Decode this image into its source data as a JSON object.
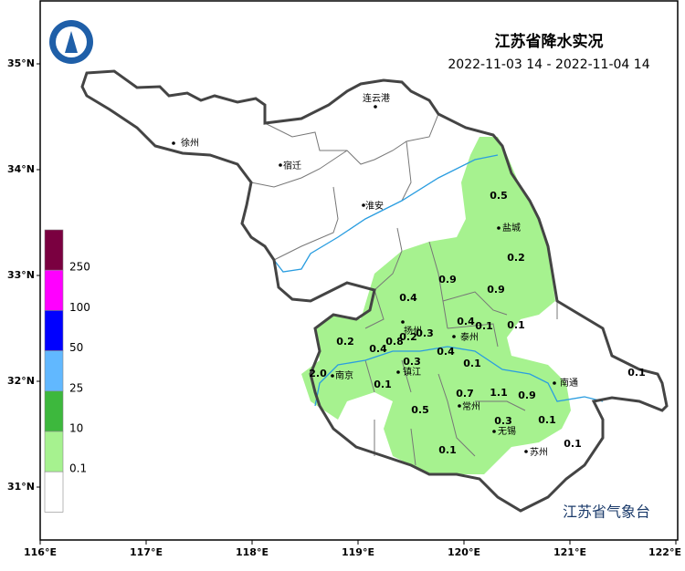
{
  "header": {
    "title": "江苏省降水实况",
    "subtitle": "2022-11-03 14 - 2022-11-04 14"
  },
  "axes": {
    "lat_ticks": [
      {
        "value": 35,
        "label": "35°N"
      },
      {
        "value": 34,
        "label": "34°N"
      },
      {
        "value": 33,
        "label": "33°N"
      },
      {
        "value": 32,
        "label": "32°N"
      },
      {
        "value": 31,
        "label": "31°N"
      }
    ],
    "lon_ticks": [
      {
        "value": 116,
        "label": "116°E"
      },
      {
        "value": 117,
        "label": "117°E"
      },
      {
        "value": 118,
        "label": "118°E"
      },
      {
        "value": 119,
        "label": "119°E"
      },
      {
        "value": 120,
        "label": "120°E"
      },
      {
        "value": 121,
        "label": "121°E"
      },
      {
        "value": 122,
        "label": "122°E"
      }
    ]
  },
  "legend": {
    "colors": [
      "#7a0040",
      "#ff00ff",
      "#0000ff",
      "#61b8ff",
      "#3db83d",
      "#a6f28f",
      "#ffffff"
    ],
    "labels": [
      250,
      100,
      50,
      25,
      10,
      0.1
    ]
  },
  "cities": [
    "连云港",
    "徐州",
    "宿迁",
    "淮安",
    "盐城",
    "扬州",
    "泰州",
    "南京",
    "镇江",
    "常州",
    "无锡",
    "苏州",
    "南通"
  ],
  "precip_labels": [
    0.5,
    0.2,
    0.9,
    0.9,
    0.4,
    0.4,
    0.1,
    0.1,
    0.2,
    0.4,
    0.8,
    0.2,
    0.3,
    0.4,
    0.3,
    0.1,
    {
      "value": 2,
      "label": "2.0"
    },
    0.1,
    0.7,
    1.1,
    0.9,
    0.5,
    0.3,
    0.1,
    0.1,
    0.1,
    0.1
  ],
  "footer": "江苏省气象台"
}
